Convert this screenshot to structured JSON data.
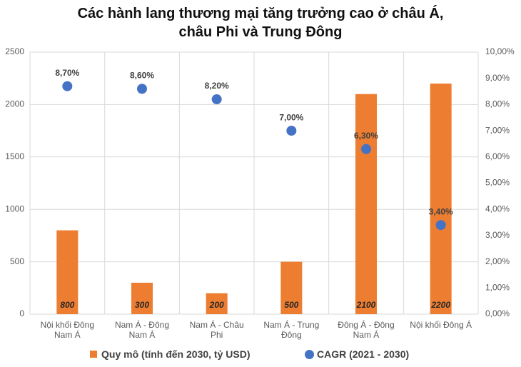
{
  "chart_data": {
    "type": "bar",
    "title": "Các hành lang thương mại tăng trưởng cao ở châu Á, châu Phi và Trung Đông",
    "categories": [
      "Nội khối Đông Nam Á",
      "Nam Á - Đông Nam Á",
      "Nam Á - Châu Phi",
      "Nam Á - Trung Đông",
      "Đông Á - Đông Nam Á",
      "Nội khối Đông Á"
    ],
    "series": [
      {
        "name": "Quy mô (tính đến 2030, tỷ USD)",
        "type": "bar",
        "color": "#ed7d31",
        "values": [
          800,
          300,
          200,
          500,
          2100,
          2200
        ]
      },
      {
        "name": "CAGR (2021 - 2030)",
        "type": "scatter",
        "axis": "y2",
        "color": "#4472c4",
        "values": [
          8.7,
          8.6,
          8.2,
          7.0,
          6.3,
          3.4
        ],
        "value_labels": [
          "8,70%",
          "8,60%",
          "8,20%",
          "7,00%",
          "6,30%",
          "3,40%"
        ]
      }
    ],
    "ylim": [
      0,
      2500
    ],
    "yticks": [
      0,
      500,
      1000,
      1500,
      2000,
      2500
    ],
    "y2lim": [
      0,
      10
    ],
    "y2ticks": [
      {
        "value": 0,
        "label": "0,00%"
      },
      {
        "value": 1,
        "label": "1,00%"
      },
      {
        "value": 2,
        "label": "2,00%"
      },
      {
        "value": 3,
        "label": "3,00%"
      },
      {
        "value": 4,
        "label": "4,00%"
      },
      {
        "value": 5,
        "label": "5,00%"
      },
      {
        "value": 6,
        "label": "6,00%"
      },
      {
        "value": 7,
        "label": "7,00%"
      },
      {
        "value": 8,
        "label": "8,00%"
      },
      {
        "value": 9,
        "label": "9,00%"
      },
      {
        "value": 10,
        "label": "10,00%"
      }
    ],
    "grid": true
  }
}
